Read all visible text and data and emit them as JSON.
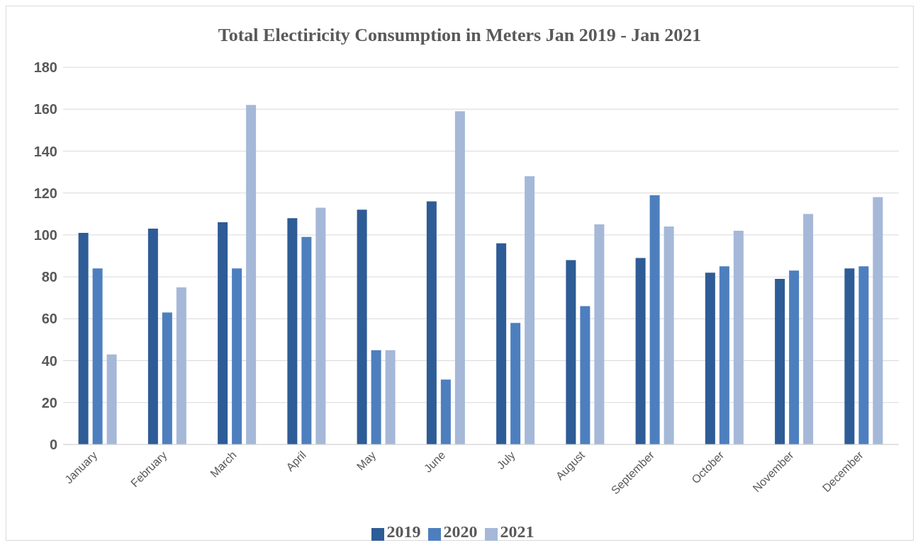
{
  "chart_data": {
    "type": "bar",
    "title": "Total Electiricity Consumption in Meters Jan 2019 - Jan 2021",
    "categories": [
      "January",
      "February",
      "March",
      "April",
      "May",
      "June",
      "July",
      "August",
      "September",
      "October",
      "November",
      "December"
    ],
    "series": [
      {
        "name": "2019",
        "color": "#2e5c96",
        "values": [
          101,
          103,
          106,
          108,
          112,
          116,
          96,
          88,
          89,
          82,
          79,
          84
        ]
      },
      {
        "name": "2020",
        "color": "#4d7fbf",
        "values": [
          84,
          63,
          84,
          99,
          45,
          31,
          58,
          66,
          119,
          85,
          83,
          85
        ]
      },
      {
        "name": "2021",
        "color": "#a5b8d8",
        "values": [
          43,
          75,
          162,
          113,
          45,
          159,
          128,
          105,
          104,
          102,
          110,
          118
        ]
      }
    ],
    "ylim": [
      0,
      180
    ],
    "yticks": [
      0,
      20,
      40,
      60,
      80,
      100,
      120,
      140,
      160,
      180
    ],
    "grid": "y",
    "legend": "bottom"
  }
}
